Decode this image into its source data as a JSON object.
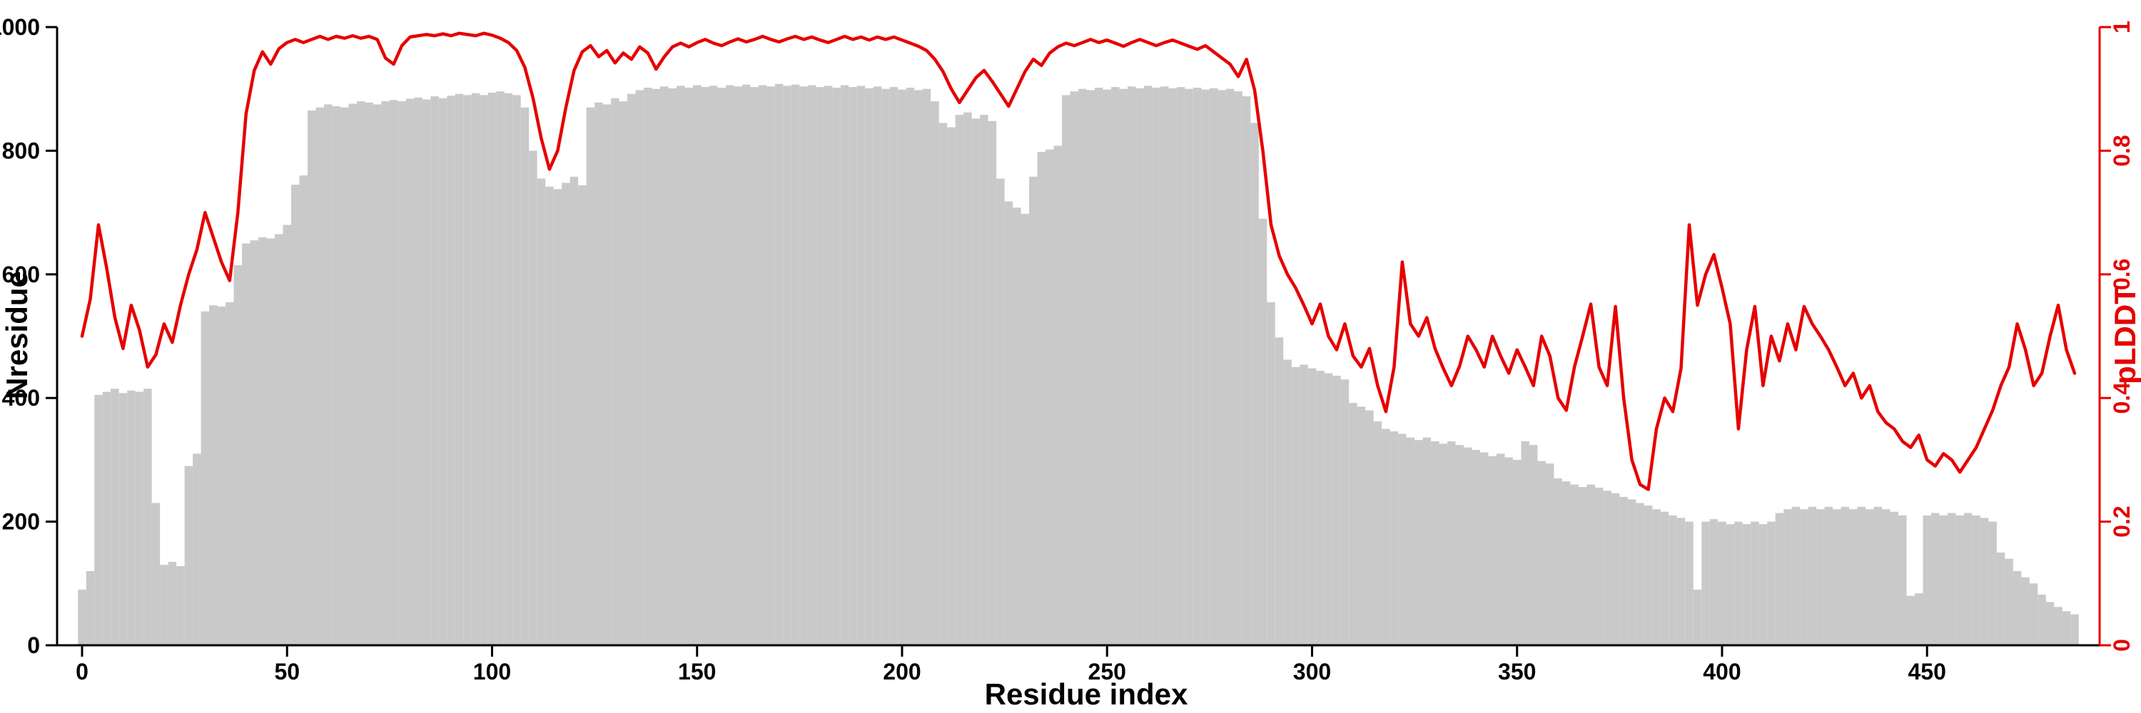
{
  "chart_data": {
    "type": "bar",
    "title": "",
    "xlabel": "Residue index",
    "ylabel_left": "Nresidue",
    "ylabel_right": "pLDDT",
    "xlim": [
      0,
      490
    ],
    "ylim_left": [
      0,
      1000
    ],
    "ylim_right": [
      0,
      1
    ],
    "x_ticks": [
      0,
      50,
      100,
      150,
      200,
      250,
      300,
      350,
      400,
      450
    ],
    "y_left_ticks": [
      0,
      200,
      400,
      600,
      800,
      1000
    ],
    "y_right_ticks": [
      0,
      0.2,
      0.4,
      0.6,
      0.8,
      1
    ],
    "grid": false,
    "legend": "none",
    "bar_color": "#c9c9c9",
    "line_color": "#e60000",
    "axis_color": "#000000",
    "x_start": 0,
    "x_step": 2,
    "series": [
      {
        "name": "Nresidue",
        "type": "bar",
        "axis": "left",
        "values": [
          90,
          120,
          405,
          410,
          415,
          408,
          412,
          410,
          415,
          230,
          130,
          135,
          128,
          290,
          310,
          540,
          550,
          548,
          555,
          615,
          650,
          655,
          660,
          658,
          665,
          680,
          745,
          760,
          865,
          870,
          875,
          872,
          870,
          876,
          880,
          878,
          875,
          880,
          882,
          880,
          884,
          886,
          883,
          888,
          885,
          889,
          892,
          890,
          893,
          890,
          894,
          896,
          893,
          890,
          870,
          800,
          755,
          742,
          738,
          748,
          758,
          744,
          870,
          878,
          875,
          885,
          880,
          892,
          898,
          902,
          900,
          904,
          901,
          905,
          902,
          906,
          903,
          905,
          902,
          906,
          904,
          907,
          903,
          906,
          904,
          908,
          905,
          907,
          904,
          906,
          903,
          905,
          902,
          906,
          903,
          905,
          901,
          904,
          900,
          903,
          899,
          902,
          898,
          900,
          880,
          845,
          838,
          858,
          862,
          852,
          858,
          848,
          755,
          718,
          708,
          698,
          758,
          798,
          802,
          808,
          890,
          896,
          900,
          898,
          902,
          899,
          903,
          900,
          904,
          901,
          905,
          902,
          904,
          901,
          903,
          900,
          902,
          899,
          901,
          898,
          900,
          896,
          888,
          845,
          690,
          555,
          498,
          462,
          450,
          454,
          448,
          444,
          440,
          436,
          430,
          392,
          386,
          380,
          362,
          350,
          346,
          342,
          336,
          332,
          336,
          330,
          326,
          330,
          324,
          320,
          316,
          312,
          306,
          310,
          304,
          300,
          330,
          324,
          298,
          294,
          270,
          265,
          260,
          256,
          260,
          255,
          250,
          246,
          240,
          236,
          230,
          226,
          220,
          216,
          210,
          206,
          200,
          90,
          200,
          204,
          200,
          196,
          200,
          196,
          200,
          196,
          200,
          214,
          220,
          224,
          220,
          224,
          220,
          224,
          220,
          224,
          220,
          224,
          220,
          224,
          220,
          216,
          210,
          80,
          84,
          210,
          214,
          210,
          214,
          210,
          214,
          210,
          206,
          200,
          150,
          140,
          120,
          110,
          100,
          82,
          70,
          62,
          55,
          50
        ]
      },
      {
        "name": "pLDDT",
        "type": "line",
        "axis": "right",
        "values": [
          0.5,
          0.56,
          0.68,
          0.61,
          0.53,
          0.48,
          0.55,
          0.51,
          0.45,
          0.47,
          0.52,
          0.49,
          0.55,
          0.6,
          0.64,
          0.7,
          0.66,
          0.62,
          0.59,
          0.7,
          0.86,
          0.93,
          0.96,
          0.94,
          0.965,
          0.975,
          0.98,
          0.975,
          0.98,
          0.985,
          0.98,
          0.985,
          0.982,
          0.986,
          0.982,
          0.985,
          0.98,
          0.95,
          0.94,
          0.97,
          0.984,
          0.986,
          0.988,
          0.986,
          0.989,
          0.986,
          0.99,
          0.988,
          0.986,
          0.99,
          0.987,
          0.982,
          0.975,
          0.962,
          0.935,
          0.885,
          0.82,
          0.77,
          0.8,
          0.87,
          0.93,
          0.96,
          0.97,
          0.952,
          0.962,
          0.942,
          0.958,
          0.948,
          0.968,
          0.958,
          0.932,
          0.952,
          0.968,
          0.974,
          0.968,
          0.975,
          0.98,
          0.974,
          0.97,
          0.976,
          0.981,
          0.976,
          0.98,
          0.985,
          0.98,
          0.976,
          0.981,
          0.985,
          0.98,
          0.984,
          0.979,
          0.975,
          0.98,
          0.985,
          0.98,
          0.984,
          0.979,
          0.984,
          0.98,
          0.984,
          0.979,
          0.974,
          0.969,
          0.962,
          0.948,
          0.928,
          0.9,
          0.878,
          0.898,
          0.918,
          0.93,
          0.912,
          0.892,
          0.872,
          0.9,
          0.928,
          0.948,
          0.938,
          0.958,
          0.968,
          0.974,
          0.97,
          0.975,
          0.98,
          0.975,
          0.979,
          0.974,
          0.969,
          0.975,
          0.98,
          0.975,
          0.97,
          0.975,
          0.979,
          0.974,
          0.969,
          0.964,
          0.97,
          0.96,
          0.95,
          0.94,
          0.92,
          0.948,
          0.898,
          0.8,
          0.68,
          0.63,
          0.6,
          0.578,
          0.55,
          0.52,
          0.552,
          0.5,
          0.478,
          0.52,
          0.468,
          0.45,
          0.48,
          0.42,
          0.378,
          0.45,
          0.62,
          0.52,
          0.5,
          0.53,
          0.48,
          0.448,
          0.42,
          0.452,
          0.5,
          0.478,
          0.45,
          0.5,
          0.468,
          0.44,
          0.478,
          0.45,
          0.42,
          0.5,
          0.468,
          0.4,
          0.38,
          0.45,
          0.5,
          0.552,
          0.45,
          0.42,
          0.548,
          0.4,
          0.3,
          0.26,
          0.252,
          0.35,
          0.4,
          0.378,
          0.448,
          0.68,
          0.55,
          0.6,
          0.632,
          0.578,
          0.52,
          0.35,
          0.478,
          0.548,
          0.42,
          0.5,
          0.46,
          0.52,
          0.478,
          0.548,
          0.52,
          0.5,
          0.478,
          0.45,
          0.42,
          0.44,
          0.4,
          0.42,
          0.378,
          0.36,
          0.35,
          0.33,
          0.32,
          0.34,
          0.3,
          0.29,
          0.31,
          0.3,
          0.28,
          0.3,
          0.32,
          0.35,
          0.38,
          0.42,
          0.45,
          0.52,
          0.478,
          0.42,
          0.44,
          0.5,
          0.55,
          0.478,
          0.44
        ]
      }
    ]
  }
}
